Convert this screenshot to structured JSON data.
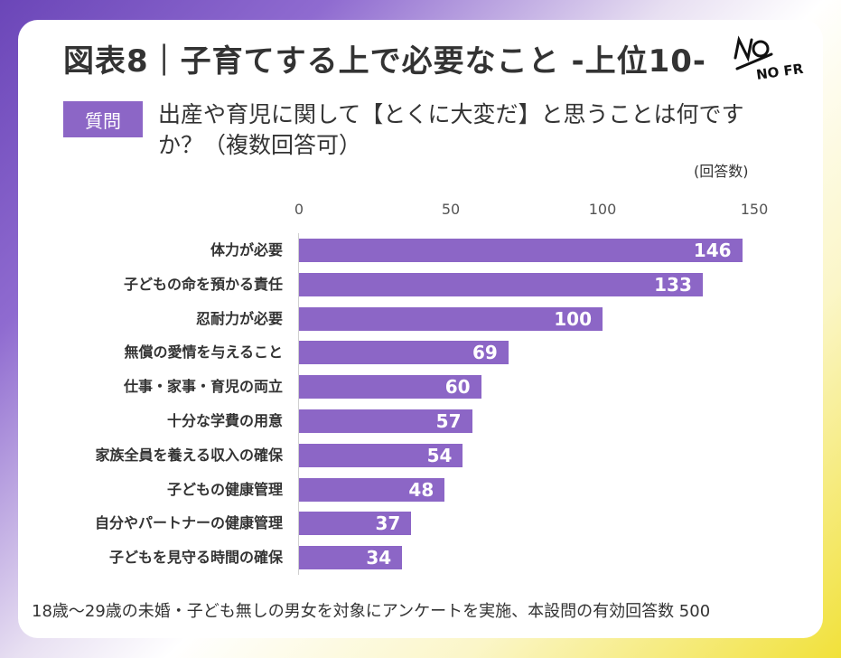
{
  "title": "図表8｜子育てする上で必要なこと -上位10-",
  "logo_text": "NO FRAME",
  "question_label": "質問",
  "question_text": "出産や育児に関して【とくに大変だ】と思うことは何ですか？（複数回答可）",
  "footnote": "18歳～29歳の未婚・子ども無しの男女を対象にアンケートを実施、本設問の有効回答数 500",
  "colors": {
    "bar": "#8c66c6",
    "badge": "#8c66c6"
  },
  "chart_data": {
    "type": "bar",
    "orientation": "horizontal",
    "unit_label": "(回答数)",
    "xlim": [
      0,
      150
    ],
    "ticks": [
      0,
      50,
      100,
      150
    ],
    "grid": false,
    "categories": [
      "体力が必要",
      "子どもの命を預かる責任",
      "忍耐力が必要",
      "無償の愛情を与えること",
      "仕事・家事・育児の両立",
      "十分な学費の用意",
      "家族全員を養える収入の確保",
      "子どもの健康管理",
      "自分やパートナーの健康管理",
      "子どもを見守る時間の確保"
    ],
    "values": [
      146,
      133,
      100,
      69,
      60,
      57,
      54,
      48,
      37,
      34
    ]
  }
}
